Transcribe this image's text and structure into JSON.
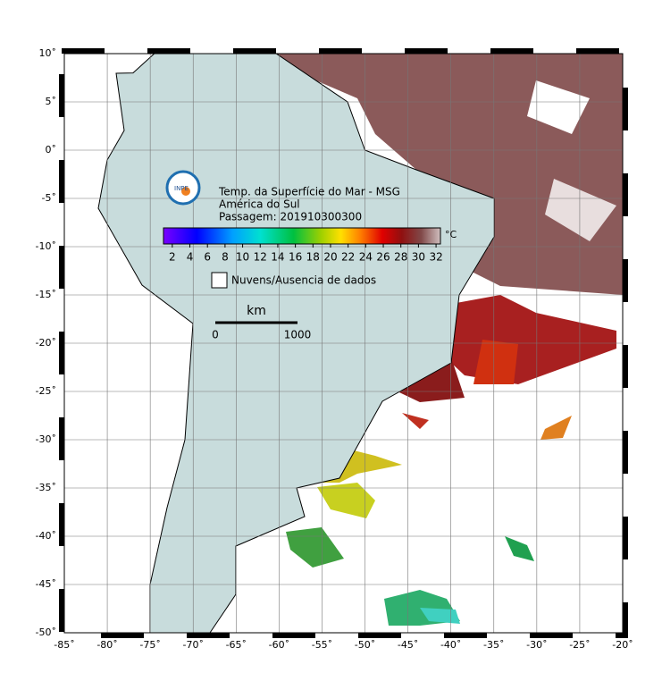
{
  "map": {
    "title_lines": [
      "Temp. da Superfície do Mar - MSG",
      "América do Sul",
      "Passagem: 201910300300"
    ],
    "logo_text": "INPE",
    "colorbar": {
      "range": [
        1,
        32.5
      ],
      "ticks": [
        2,
        4,
        6,
        8,
        10,
        12,
        14,
        16,
        18,
        20,
        22,
        24,
        26,
        28,
        30,
        32
      ],
      "unit": "°C"
    },
    "legend": "Nuvens/Ausencia de dados",
    "scale_bar": {
      "unit": "km",
      "labels": [
        "0",
        "1000"
      ]
    },
    "lon_range": [
      -85,
      -20
    ],
    "lat_range": [
      10,
      -50
    ],
    "lon_ticks": [
      {
        "value": -85,
        "label": "-85˚"
      },
      {
        "value": -80,
        "label": "-80˚"
      },
      {
        "value": -75,
        "label": "-75˚"
      },
      {
        "value": -70,
        "label": "-70˚"
      },
      {
        "value": -65,
        "label": "-65˚"
      },
      {
        "value": -60,
        "label": "-60˚"
      },
      {
        "value": -55,
        "label": "-55˚"
      },
      {
        "value": -50,
        "label": "-50˚"
      },
      {
        "value": -45,
        "label": "-45˚"
      },
      {
        "value": -40,
        "label": "-40˚"
      },
      {
        "value": -35,
        "label": "-35˚"
      },
      {
        "value": -30,
        "label": "-30˚"
      },
      {
        "value": -25,
        "label": "-25˚"
      },
      {
        "value": -20,
        "label": "-20˚"
      }
    ],
    "lat_ticks": [
      {
        "value": 10,
        "label": "10˚"
      },
      {
        "value": 5,
        "label": "5˚"
      },
      {
        "value": 0,
        "label": "0˚"
      },
      {
        "value": -5,
        "label": "-5˚"
      },
      {
        "value": -10,
        "label": "-10˚"
      },
      {
        "value": -15,
        "label": "-15˚"
      },
      {
        "value": -20,
        "label": "-20˚"
      },
      {
        "value": -25,
        "label": "-25˚"
      },
      {
        "value": -30,
        "label": "-30˚"
      },
      {
        "value": -35,
        "label": "-35˚"
      },
      {
        "value": -40,
        "label": "-40˚"
      },
      {
        "value": -45,
        "label": "-45˚"
      },
      {
        "value": -50,
        "label": "-50˚"
      }
    ]
  }
}
